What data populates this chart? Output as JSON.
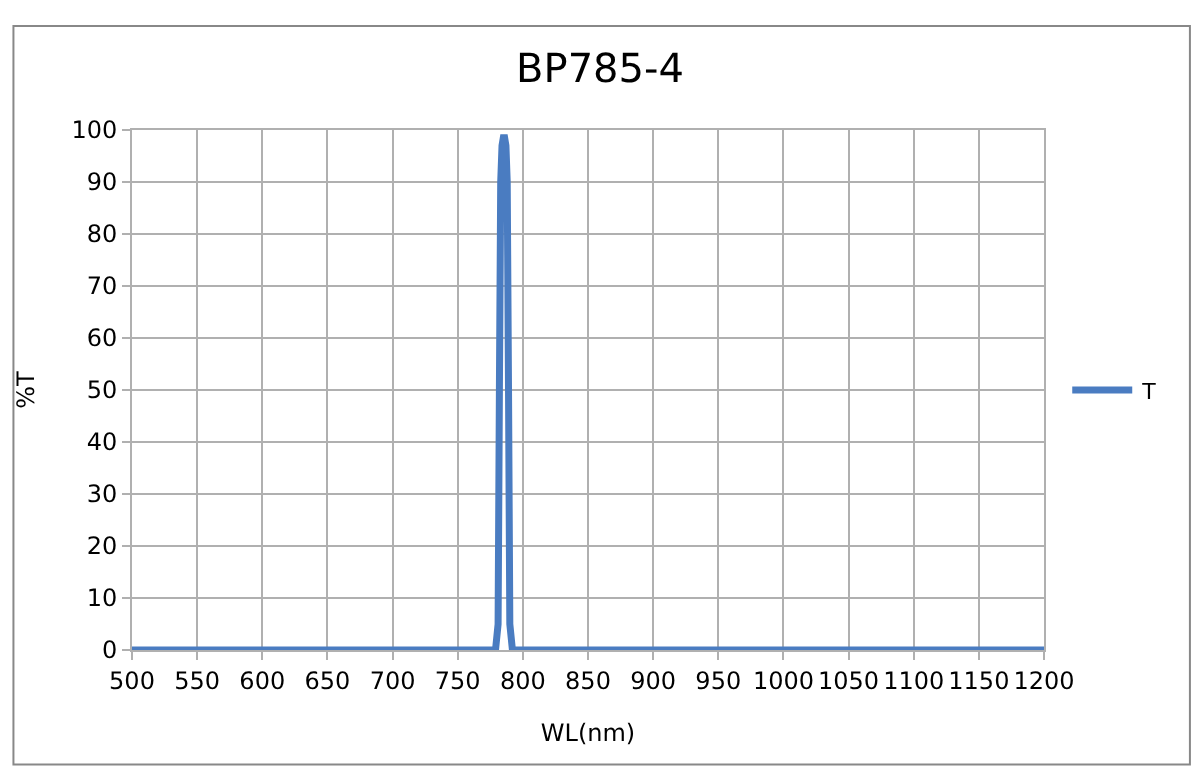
{
  "chart_data": {
    "type": "line",
    "title": "BP785-4",
    "xlabel": "WL(nm)",
    "ylabel": "%T",
    "series": [
      {
        "name": "T",
        "color": "#4a7cc1",
        "x": [
          500,
          779,
          781,
          782,
          783,
          784,
          785,
          786,
          787,
          788,
          789,
          790,
          792,
          1200
        ],
        "values": [
          0,
          0,
          5,
          50,
          90,
          97,
          98.5,
          98.5,
          97,
          90,
          50,
          5,
          0,
          0
        ]
      }
    ],
    "xlim": [
      500,
      1200
    ],
    "xticks": [
      500,
      550,
      600,
      650,
      700,
      750,
      800,
      850,
      900,
      950,
      1000,
      1050,
      1100,
      1150,
      1200
    ],
    "ylim": [
      0,
      100
    ],
    "yticks": [
      0,
      10,
      20,
      30,
      40,
      50,
      60,
      70,
      80,
      90,
      100
    ],
    "grid": true,
    "legend": "right",
    "marker": "none",
    "line_style": "solid"
  }
}
